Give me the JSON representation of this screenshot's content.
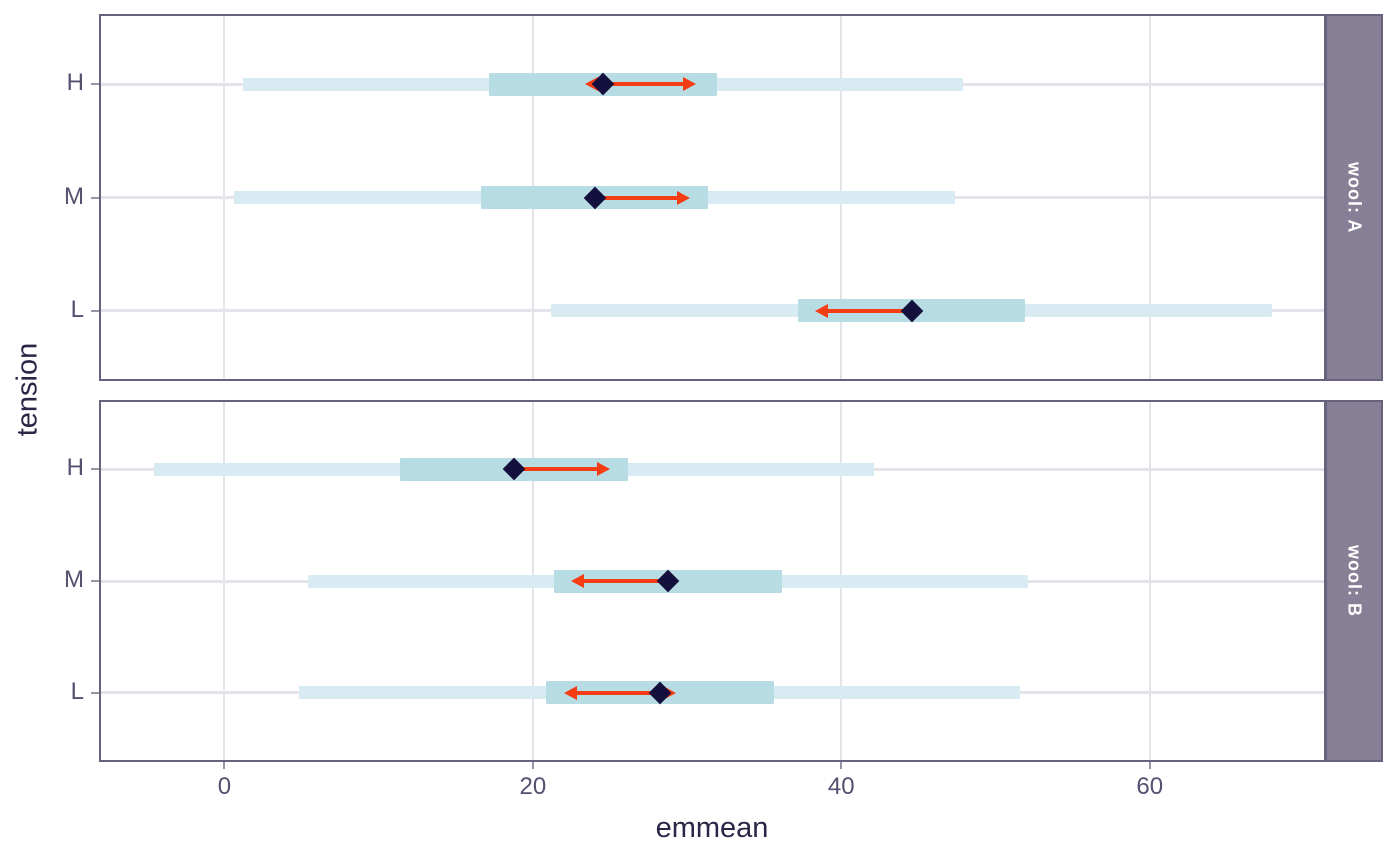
{
  "chart_data": {
    "type": "interval",
    "description": "Estimated marginal means plot with confidence intervals, prediction intervals and comparison arrows, faceted by wool",
    "x_label": "emmean",
    "y_label": "tension",
    "x_ticks": [
      0,
      20,
      40,
      60
    ],
    "x_domain": [
      -8,
      71.3
    ],
    "y_categories": [
      "H",
      "M",
      "L"
    ],
    "legend": "none",
    "grid": "on",
    "facets": [
      {
        "label": "wool: A",
        "rows": [
          {
            "category": "H",
            "emmean": 24.56,
            "ci": [
              17.17,
              31.94
            ],
            "pi": [
              1.2,
              47.91
            ],
            "arrows": [
              {
                "dir": "left",
                "tip": 23.4
              },
              {
                "dir": "right",
                "tip": 30.6
              }
            ]
          },
          {
            "category": "M",
            "emmean": 24.0,
            "ci": [
              16.61,
              31.39
            ],
            "pi": [
              0.64,
              47.36
            ],
            "arrows": [
              {
                "dir": "right",
                "tip": 30.2
              }
            ]
          },
          {
            "category": "L",
            "emmean": 44.56,
            "ci": [
              37.17,
              51.94
            ],
            "pi": [
              21.2,
              67.91
            ],
            "arrows": [
              {
                "dir": "left",
                "tip": 38.3
              }
            ]
          }
        ]
      },
      {
        "label": "wool: B",
        "rows": [
          {
            "category": "H",
            "emmean": 18.78,
            "ci": [
              11.39,
              26.16
            ],
            "pi": [
              -4.58,
              42.13
            ],
            "arrows": [
              {
                "dir": "right",
                "tip": 25.0
              }
            ]
          },
          {
            "category": "M",
            "emmean": 28.78,
            "ci": [
              21.39,
              36.16
            ],
            "pi": [
              5.42,
              52.13
            ],
            "arrows": [
              {
                "dir": "left",
                "tip": 22.5
              }
            ]
          },
          {
            "category": "L",
            "emmean": 28.22,
            "ci": [
              20.83,
              35.61
            ],
            "pi": [
              4.86,
              51.58
            ],
            "arrows": [
              {
                "dir": "left",
                "tip": 22.0
              },
              {
                "dir": "right",
                "tip": 29.3
              }
            ]
          }
        ]
      }
    ],
    "colors": {
      "pi_bar": "#d8eaf2",
      "ci_bar": "#b7dce3",
      "point": "#150f3d",
      "arrow": "#f43d14",
      "strip_bg": "#867f95",
      "strip_text": "#ffffff",
      "panel_border": "#69627e",
      "gridline": "#e4e3ea",
      "tick_text": "#565070",
      "title_text": "#2b2546",
      "tick_mark": "#9a94a8",
      "panel_bg": "#ffffff"
    }
  }
}
